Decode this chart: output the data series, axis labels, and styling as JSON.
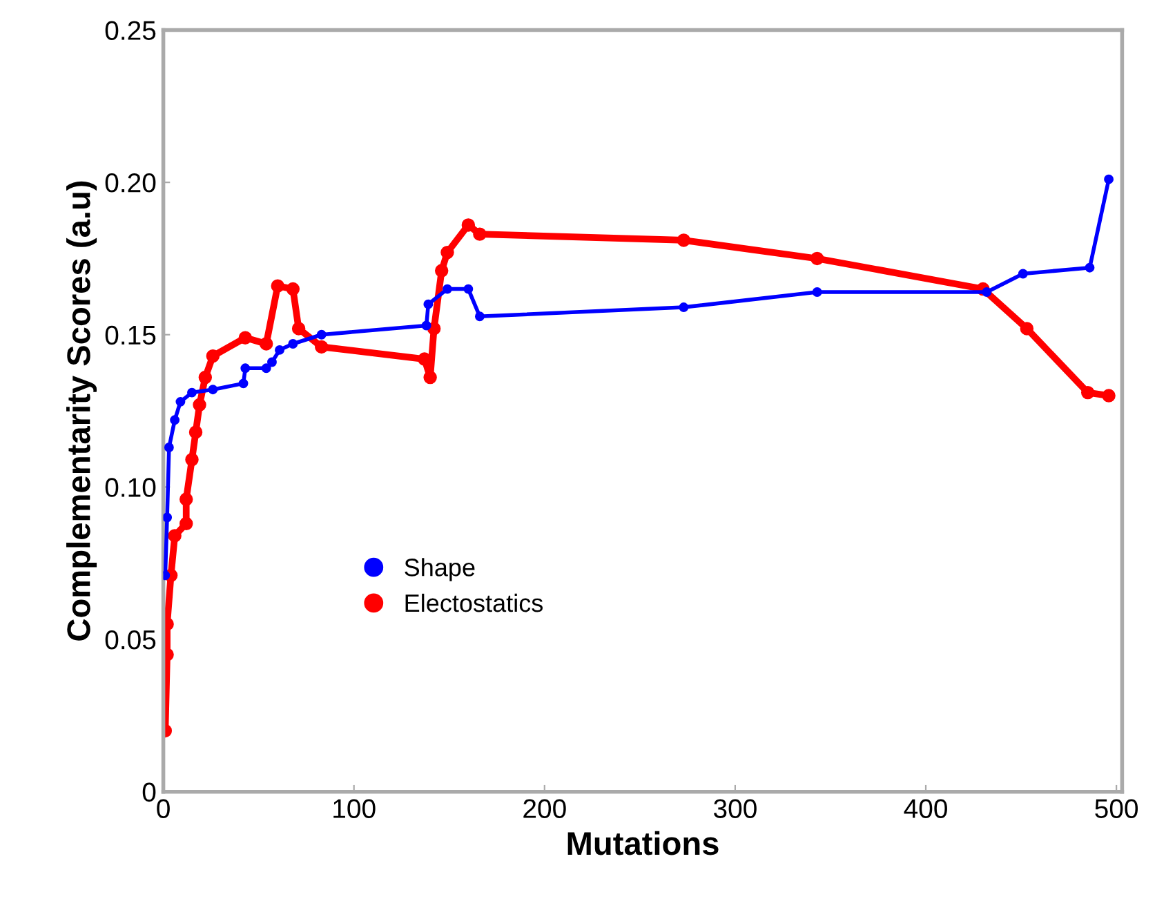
{
  "chart_data": {
    "type": "line",
    "xlabel": "Mutations",
    "ylabel": "Complementarity Scores (a.u)",
    "xlim": [
      0,
      503
    ],
    "xticks": [
      0,
      100,
      200,
      300,
      400,
      500
    ],
    "ylim": [
      0,
      0.25
    ],
    "yticks": [
      {
        "value": 0,
        "label": "0"
      },
      {
        "value": 0.05,
        "label": "0.05"
      },
      {
        "value": 0.1,
        "label": "0.10"
      },
      {
        "value": 0.15,
        "label": "0.15"
      },
      {
        "value": 0.2,
        "label": "0.20"
      },
      {
        "value": 0.25,
        "label": "0.25"
      }
    ],
    "grid": false,
    "legend": "bottom left",
    "marker": "circle",
    "line_style": "solid",
    "series": [
      {
        "name": "Shape",
        "color": "#0000ff",
        "x": [
          1,
          2,
          3,
          6,
          9,
          15,
          26,
          42,
          43,
          54,
          57,
          61,
          68,
          83,
          138,
          139,
          149,
          160,
          166,
          273,
          343,
          432,
          451,
          486,
          496
        ],
        "values": [
          0.071,
          0.09,
          0.113,
          0.122,
          0.128,
          0.131,
          0.132,
          0.134,
          0.139,
          0.139,
          0.141,
          0.145,
          0.147,
          0.15,
          0.153,
          0.16,
          0.165,
          0.165,
          0.156,
          0.159,
          0.164,
          0.164,
          0.17,
          0.172,
          0.201
        ]
      },
      {
        "name": "Electostatics",
        "color": "#ff0000",
        "x": [
          1,
          2,
          2,
          4,
          6,
          12,
          12,
          15,
          17,
          19,
          22,
          26,
          43,
          54,
          60,
          68,
          71,
          83,
          137,
          140,
          142,
          146,
          149,
          160,
          166,
          273,
          343,
          430,
          453,
          485,
          496
        ],
        "values": [
          0.02,
          0.045,
          0.055,
          0.071,
          0.084,
          0.088,
          0.096,
          0.109,
          0.118,
          0.127,
          0.136,
          0.143,
          0.149,
          0.147,
          0.166,
          0.165,
          0.152,
          0.146,
          0.142,
          0.136,
          0.152,
          0.171,
          0.177,
          0.186,
          0.183,
          0.181,
          0.175,
          0.165,
          0.152,
          0.131,
          0.13
        ]
      }
    ]
  }
}
